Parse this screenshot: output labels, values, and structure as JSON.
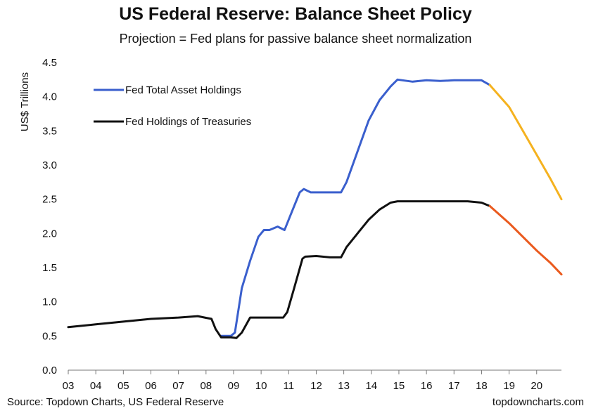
{
  "chart_data": {
    "type": "line",
    "title": "US Federal Reserve: Balance Sheet Policy",
    "subtitle": "Projection = Fed plans for passive balance sheet normalization",
    "ylabel": "US$ Trillions",
    "xlabel": "",
    "ylim": [
      0,
      4.5
    ],
    "xlim": [
      2003,
      2020.9
    ],
    "y_ticks": [
      "0.0",
      "0.5",
      "1.0",
      "1.5",
      "2.0",
      "2.5",
      "3.0",
      "3.5",
      "4.0",
      "4.5"
    ],
    "x_ticks": [
      "03",
      "04",
      "05",
      "06",
      "07",
      "08",
      "09",
      "10",
      "11",
      "12",
      "13",
      "14",
      "15",
      "16",
      "17",
      "18",
      "19",
      "20"
    ],
    "legend_position": "top-left",
    "series": [
      {
        "name": "Fed Total Asset Holdings",
        "legend": true,
        "color": "#3a5fcd",
        "x": [
          2008.55,
          2008.9,
          2009.05,
          2009.3,
          2009.6,
          2009.9,
          2010.1,
          2010.3,
          2010.6,
          2010.85,
          2011.1,
          2011.4,
          2011.55,
          2011.8,
          2012.2,
          2012.6,
          2012.9,
          2013.1,
          2013.5,
          2013.9,
          2014.3,
          2014.7,
          2014.95,
          2015.5,
          2016,
          2016.5,
          2017,
          2017.5,
          2018,
          2018.3
        ],
        "y": [
          0.5,
          0.5,
          0.55,
          1.2,
          1.6,
          1.95,
          2.05,
          2.05,
          2.1,
          2.05,
          2.3,
          2.6,
          2.65,
          2.6,
          2.6,
          2.6,
          2.6,
          2.75,
          3.2,
          3.65,
          3.95,
          4.15,
          4.25,
          4.22,
          4.24,
          4.23,
          4.24,
          4.24,
          4.24,
          4.17
        ]
      },
      {
        "name": "Fed Total Asset Holdings (projection)",
        "legend": false,
        "color": "#f5b21f",
        "x": [
          2018.3,
          2019,
          2019.5,
          2020,
          2020.5,
          2020.9
        ],
        "y": [
          4.17,
          3.85,
          3.5,
          3.15,
          2.8,
          2.5
        ]
      },
      {
        "name": "Fed Holdings of Treasuries",
        "legend": true,
        "color": "#111111",
        "x": [
          2003,
          2004,
          2005,
          2006,
          2007,
          2007.7,
          2007.95,
          2008.2,
          2008.35,
          2008.55,
          2008.9,
          2009.1,
          2009.3,
          2009.6,
          2010,
          2010.5,
          2010.8,
          2010.95,
          2011.2,
          2011.5,
          2011.6,
          2012,
          2012.5,
          2012.9,
          2013.1,
          2013.5,
          2013.9,
          2014.3,
          2014.7,
          2014.95,
          2015.5,
          2016,
          2016.5,
          2017,
          2017.5,
          2018,
          2018.3
        ],
        "y": [
          0.63,
          0.67,
          0.71,
          0.75,
          0.77,
          0.79,
          0.77,
          0.75,
          0.6,
          0.48,
          0.48,
          0.47,
          0.55,
          0.77,
          0.77,
          0.77,
          0.77,
          0.85,
          1.2,
          1.63,
          1.66,
          1.67,
          1.65,
          1.65,
          1.8,
          2.0,
          2.2,
          2.35,
          2.45,
          2.47,
          2.47,
          2.47,
          2.47,
          2.47,
          2.47,
          2.45,
          2.4
        ]
      },
      {
        "name": "Fed Holdings of Treasuries (projection)",
        "legend": false,
        "color": "#ea5a1e",
        "x": [
          2018.3,
          2019,
          2019.5,
          2020,
          2020.5,
          2020.9
        ],
        "y": [
          2.4,
          2.15,
          1.95,
          1.75,
          1.57,
          1.4
        ]
      }
    ]
  },
  "footer": {
    "source": "Source: Topdown Charts, US Federal Reserve",
    "brand": "topdowncharts.com"
  }
}
